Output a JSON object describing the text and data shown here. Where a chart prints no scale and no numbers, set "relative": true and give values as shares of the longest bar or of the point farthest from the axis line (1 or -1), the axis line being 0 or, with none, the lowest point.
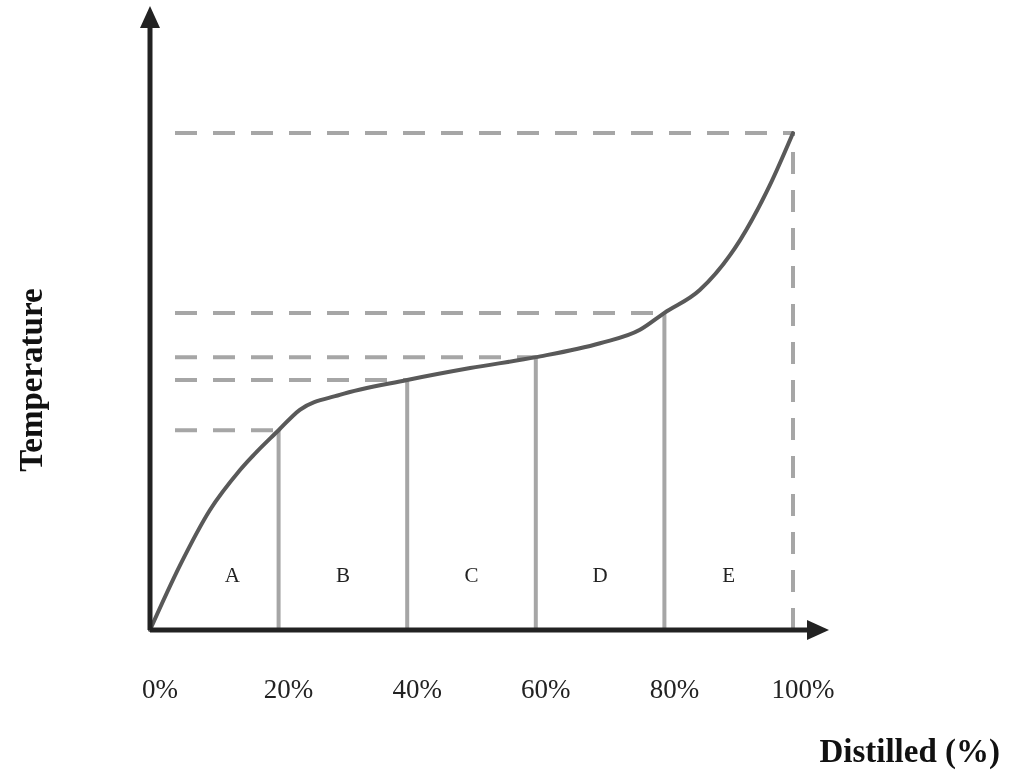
{
  "chart_data": {
    "type": "line",
    "relative": true,
    "xlabel": "Distilled (%)",
    "ylabel": "Temperature",
    "xlim": [
      0,
      100
    ],
    "xticks": [
      {
        "value": 0,
        "label": "0%"
      },
      {
        "value": 20,
        "label": "20%"
      },
      {
        "value": 40,
        "label": "40%"
      },
      {
        "value": 60,
        "label": "60%"
      },
      {
        "value": 80,
        "label": "80%"
      },
      {
        "value": 100,
        "label": "100%"
      }
    ],
    "series": [
      {
        "color": "#595959",
        "x": [
          0,
          4.7,
          9.3,
          14,
          20,
          23.3,
          29.5,
          40,
          49.8,
          60,
          70,
          76.2,
          80,
          85.5,
          91.8,
          96.4,
          100
        ],
        "values": [
          0,
          0.131,
          0.241,
          0.322,
          0.402,
          0.443,
          0.473,
          0.503,
          0.527,
          0.549,
          0.577,
          0.604,
          0.638,
          0.684,
          0.785,
          0.895,
          1
        ]
      }
    ],
    "ref_lines": [
      {
        "axis": "y",
        "value": 0.402,
        "color": "#a6a6a6",
        "line_style": "dashed"
      },
      {
        "axis": "y",
        "value": 0.503,
        "color": "#a6a6a6",
        "line_style": "dashed"
      },
      {
        "axis": "y",
        "value": 0.549,
        "color": "#a6a6a6",
        "line_style": "dashed"
      },
      {
        "axis": "y",
        "value": 0.638,
        "color": "#a6a6a6",
        "line_style": "dashed"
      },
      {
        "axis": "y",
        "value": 1,
        "color": "#a6a6a6",
        "line_style": "dashed"
      },
      {
        "axis": "x",
        "value": 20,
        "color": "#a6a6a6",
        "line_style": "solid"
      },
      {
        "axis": "x",
        "value": 40,
        "color": "#a6a6a6",
        "line_style": "solid"
      },
      {
        "axis": "x",
        "value": 60,
        "color": "#a6a6a6",
        "line_style": "solid"
      },
      {
        "axis": "x",
        "value": 80,
        "color": "#a6a6a6",
        "line_style": "solid"
      },
      {
        "axis": "x",
        "value": 100,
        "color": "#a6a6a6",
        "line_style": "dashed"
      }
    ],
    "annotations": [
      "A",
      "B",
      "C",
      "D",
      "E"
    ],
    "grid": false,
    "line_style": "solid"
  }
}
